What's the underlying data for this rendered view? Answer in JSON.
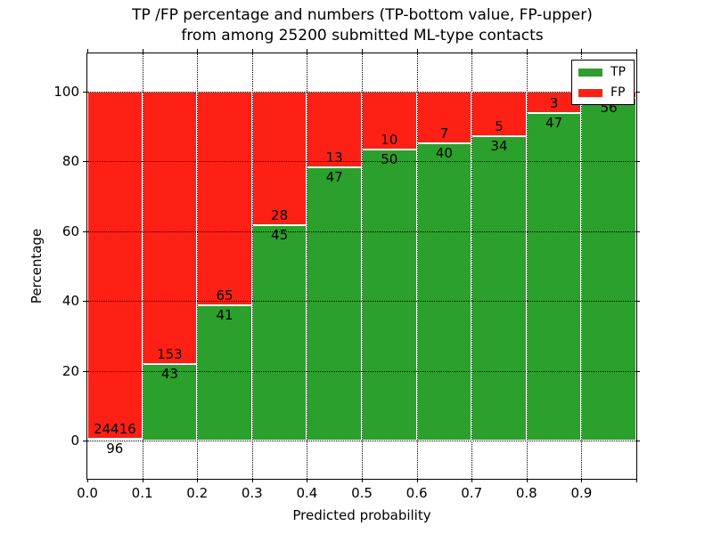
{
  "chart_data": {
    "type": "bar",
    "stacked": true,
    "normalized_to_percent": true,
    "title_line1": "TP /FP percentage and numbers (TP-bottom value, FP-upper)",
    "title_line2": "from among 25200 submitted ML-type contacts",
    "xlabel": "Predicted probability",
    "ylabel": "Percentage",
    "xlim": [
      0.0,
      1.0
    ],
    "ylim": [
      -11,
      111
    ],
    "grid": true,
    "bin_width": 0.1,
    "bins": [
      {
        "range": [
          0.0,
          0.1
        ],
        "tp": 96,
        "fp": 24416
      },
      {
        "range": [
          0.1,
          0.2
        ],
        "tp": 43,
        "fp": 153
      },
      {
        "range": [
          0.2,
          0.3
        ],
        "tp": 41,
        "fp": 65
      },
      {
        "range": [
          0.3,
          0.4
        ],
        "tp": 45,
        "fp": 28
      },
      {
        "range": [
          0.4,
          0.5
        ],
        "tp": 47,
        "fp": 13
      },
      {
        "range": [
          0.5,
          0.6
        ],
        "tp": 50,
        "fp": 10
      },
      {
        "range": [
          0.6,
          0.7
        ],
        "tp": 40,
        "fp": 7
      },
      {
        "range": [
          0.7,
          0.8
        ],
        "tp": 34,
        "fp": 5
      },
      {
        "range": [
          0.8,
          0.9
        ],
        "tp": 47,
        "fp": 3
      },
      {
        "range": [
          0.9,
          1.0
        ],
        "tp": 56,
        "fp": 1
      }
    ],
    "xticks": [
      "0.0",
      "0.1",
      "0.2",
      "0.3",
      "0.4",
      "0.5",
      "0.6",
      "0.7",
      "0.8",
      "0.9"
    ],
    "yticks": [
      "0",
      "20",
      "40",
      "60",
      "80",
      "100"
    ],
    "colors": {
      "tp": "#2ca02c",
      "fp": "#ff2015"
    },
    "legend": {
      "position": "upper right",
      "entries": [
        {
          "label": "TP",
          "color_key": "tp"
        },
        {
          "label": "FP",
          "color_key": "fp"
        }
      ]
    }
  }
}
